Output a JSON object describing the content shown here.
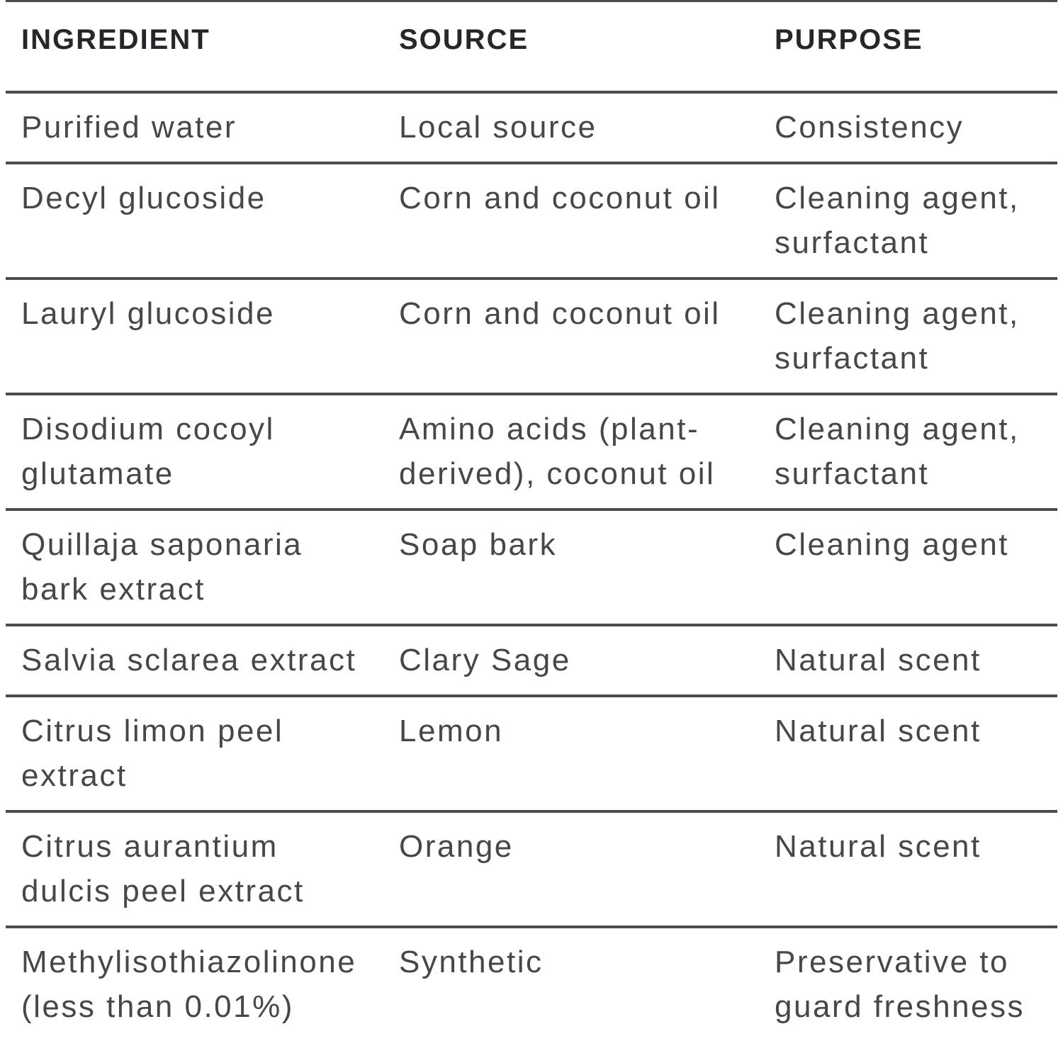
{
  "chart_data": {
    "type": "table",
    "columns": [
      "INGREDIENT",
      "SOURCE",
      "PURPOSE"
    ],
    "rows": [
      {
        "ingredient": "Purified water",
        "source": "Local source",
        "purpose": "Consistency"
      },
      {
        "ingredient": "Decyl glucoside",
        "source": "Corn and coconut oil",
        "purpose": "Cleaning agent,\nsurfactant"
      },
      {
        "ingredient": "Lauryl glucoside",
        "source": "Corn and coconut oil",
        "purpose": "Cleaning agent,\nsurfactant"
      },
      {
        "ingredient": "Disodium cocoyl\nglutamate",
        "source": "Amino acids (plant-\nderived), coconut oil",
        "purpose": "Cleaning agent,\nsurfactant"
      },
      {
        "ingredient": "Quillaja saponaria\nbark extract",
        "source": "Soap bark",
        "purpose": "Cleaning agent"
      },
      {
        "ingredient": "Salvia sclarea extract",
        "source": "Clary Sage",
        "purpose": "Natural scent"
      },
      {
        "ingredient": "Citrus limon peel\nextract",
        "source": "Lemon",
        "purpose": "Natural scent"
      },
      {
        "ingredient": "Citrus aurantium\ndulcis peel extract",
        "source": "Orange",
        "purpose": "Natural scent"
      },
      {
        "ingredient": "Methylisothiazolinone\n(less than 0.01%)",
        "source": "Synthetic",
        "purpose": "Preservative to\nguard freshness"
      }
    ],
    "layout": {
      "grid": "horizontal-rules-only",
      "header_position": "top"
    }
  },
  "colors": {
    "background": "#ffffff",
    "body_text": "#474747",
    "header_text": "#26262b",
    "rule_line": "#4c4c4c"
  }
}
